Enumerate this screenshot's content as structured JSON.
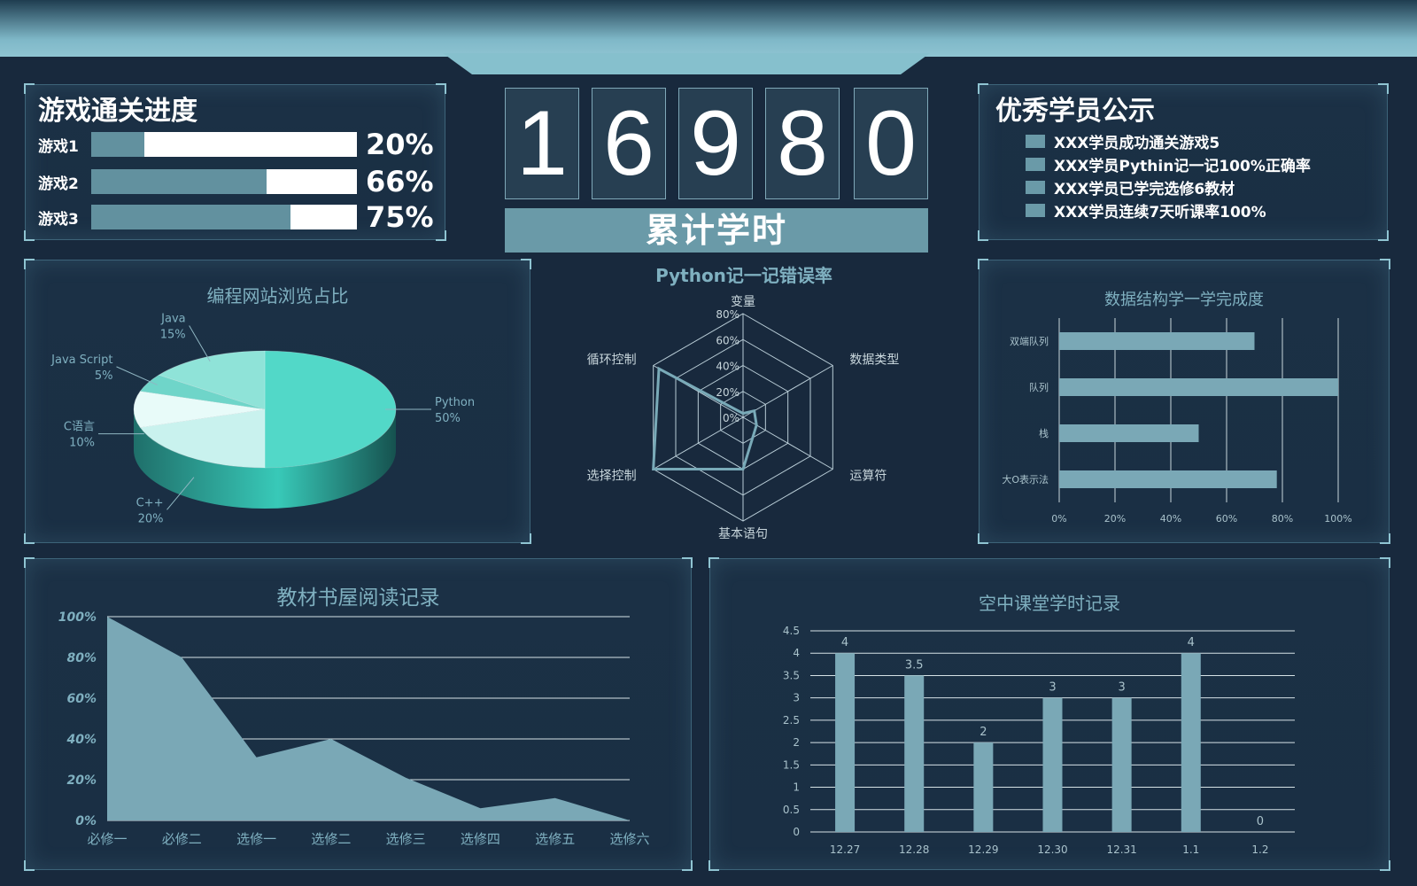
{
  "game_progress": {
    "title": "游戏通关进度",
    "items": [
      {
        "label": "游戏1",
        "value": 20,
        "pct_label": "20%"
      },
      {
        "label": "游戏2",
        "value": 66,
        "pct_label": "66%"
      },
      {
        "label": "游戏3",
        "value": 75,
        "pct_label": "75%"
      }
    ]
  },
  "total_hours": {
    "digits": [
      "1",
      "6",
      "9",
      "8",
      "0"
    ],
    "label": "累计学时"
  },
  "honor_roll": {
    "title": "优秀学员公示",
    "items": [
      "XXX学员成功通关游戏5",
      "XXX学员Pythin记一记100%正确率",
      "XXX学员已学完选修6教材",
      "XXX学员连续7天听课率100%"
    ]
  },
  "colors": {
    "background": "#18293d",
    "accent": "#6a9aa8",
    "teal": "#3fd1c2",
    "text_muted": "#7fb0c0"
  },
  "chart_data": [
    {
      "type": "pie",
      "title": "编程网站浏览占比",
      "categories": [
        "Python",
        "C++",
        "C语言",
        "Java Script",
        "Java"
      ],
      "values": [
        50,
        20,
        10,
        5,
        15
      ],
      "labels": [
        "50%",
        "20%",
        "10%",
        "5%",
        "15%"
      ]
    },
    {
      "type": "radar",
      "title": "Python记一记错误率",
      "categories": [
        "变量",
        "数据类型",
        "运算符",
        "基本语句",
        "选择控制",
        "循环控制"
      ],
      "values": [
        3,
        10,
        12,
        40,
        80,
        75
      ],
      "ticks": [
        "0%",
        "20%",
        "40%",
        "60%",
        "80%"
      ],
      "rmax": 80
    },
    {
      "type": "bar",
      "orientation": "horizontal",
      "title": "数据结构学一学完成度",
      "categories": [
        "双端队列",
        "队列",
        "栈",
        "大O表示法"
      ],
      "values": [
        70,
        100,
        50,
        78
      ],
      "xticks": [
        "0%",
        "20%",
        "40%",
        "60%",
        "80%",
        "100%"
      ],
      "xlim": [
        0,
        100
      ]
    },
    {
      "type": "area",
      "title": "教材书屋阅读记录",
      "categories": [
        "必修一",
        "必修二",
        "选修一",
        "选修二",
        "选修三",
        "选修四",
        "选修五",
        "选修六"
      ],
      "values": [
        100,
        80,
        31,
        40,
        21,
        6,
        11,
        0
      ],
      "yticks": [
        "0%",
        "20%",
        "40%",
        "60%",
        "80%",
        "100%"
      ],
      "ylim": [
        0,
        100
      ]
    },
    {
      "type": "bar",
      "title": "空中课堂学时记录",
      "categories": [
        "12.27",
        "12.28",
        "12.29",
        "12.30",
        "12.31",
        "1.1",
        "1.2"
      ],
      "values": [
        4,
        3.5,
        2,
        3,
        3,
        4,
        0
      ],
      "value_labels": [
        "4",
        "3.5",
        "2",
        "3",
        "3",
        "4",
        "0"
      ],
      "yticks": [
        "0",
        "0.5",
        "1",
        "1.5",
        "2",
        "2.5",
        "3",
        "3.5",
        "4",
        "4.5"
      ],
      "ylim": [
        0,
        4.5
      ]
    }
  ]
}
